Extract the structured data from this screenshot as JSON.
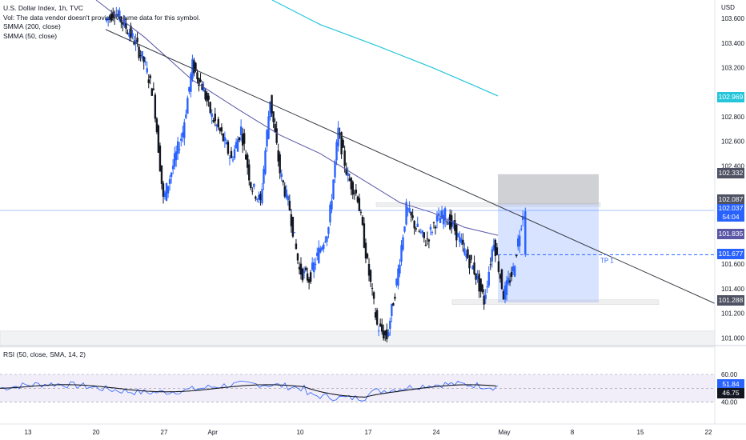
{
  "legend": {
    "title": "U.S. Dollar Index, 1h, TVC",
    "vol": "Vol: The data vendor doesn't provide volume data for this symbol.",
    "smma200": "SMMA (200, close)",
    "smma50": "SMMA (50, close)"
  },
  "rsi_legend": "RSI (50, close, SMA, 14, 2)",
  "price_axis": {
    "currency": "USD",
    "ticks": [
      "103.600",
      "103.400",
      "103.200",
      "102.800",
      "102.600",
      "102.400",
      "101.600",
      "101.400",
      "101.200",
      "101.000"
    ]
  },
  "rsi_axis": {
    "ticks": [
      "60.00",
      "40.00"
    ]
  },
  "time_axis": {
    "ticks": [
      "13",
      "20",
      "27",
      "Apr",
      "10",
      "17",
      "24",
      "May",
      "8",
      "15",
      "22"
    ]
  },
  "badges": {
    "smma200": "102.969",
    "stop": "102.332",
    "upper": "102.087",
    "last_price": "102.037",
    "countdown": "54:04",
    "smma50": "101.835",
    "tp": "101.677",
    "target": "101.288",
    "rsi": "51.84",
    "rsi_ma": "46.75"
  },
  "annotations": {
    "tp_label": "TP 1"
  },
  "colors": {
    "up": "#2962ff",
    "down": "#131722",
    "smma200": "#26c6da",
    "smma50": "#5b57a6",
    "trendline": "#363a45",
    "stop_zone": "rgba(120,123,134,0.35)",
    "target_zone": "rgba(41,98,255,0.18)",
    "rsi_line": "#2962ff",
    "rsi_ma": "#131722",
    "rsi_band": "rgba(126,87,194,0.10)"
  },
  "chart_data": {
    "type": "candlestick",
    "symbol": "U.S. Dollar Index",
    "timeframe": "1h",
    "y_range": [
      100.95,
      103.75
    ],
    "price_levels": {
      "stop_top": 102.332,
      "upper_box": 102.087,
      "last_price": 102.037,
      "take_profit": 101.677,
      "target_bottom": 101.288,
      "smma200_last": 102.969,
      "smma50_last": 101.835
    },
    "trendline": {
      "from": [
        "Mar 20",
        103.5
      ],
      "to": [
        "May 22",
        101.28
      ]
    },
    "candles": [
      {
        "date": "Mar 17",
        "close": 103.58
      },
      {
        "date": "Mar 18",
        "close": 103.66
      },
      {
        "date": "Mar 19",
        "close": 103.55
      },
      {
        "date": "Mar 20",
        "close": 103.42
      },
      {
        "date": "Mar 21",
        "close": 103.25
      },
      {
        "date": "Mar 22",
        "close": 102.98
      },
      {
        "date": "Mar 23",
        "close": 102.12
      },
      {
        "date": "Mar 24",
        "close": 102.4
      },
      {
        "date": "Mar 25",
        "close": 102.68
      },
      {
        "date": "Mar 26",
        "close": 103.22
      },
      {
        "date": "Mar 27",
        "close": 103.05
      },
      {
        "date": "Mar 28",
        "close": 102.8
      },
      {
        "date": "Mar 29",
        "close": 102.65
      },
      {
        "date": "Mar 30",
        "close": 102.45
      },
      {
        "date": "Mar 31",
        "close": 102.7
      },
      {
        "date": "Apr 1",
        "close": 102.25
      },
      {
        "date": "Apr 2",
        "close": 102.1
      },
      {
        "date": "Apr 3",
        "close": 102.95
      },
      {
        "date": "Apr 4",
        "close": 102.35
      },
      {
        "date": "Apr 5",
        "close": 102.05
      },
      {
        "date": "Apr 6",
        "close": 101.55
      },
      {
        "date": "Apr 7",
        "close": 101.48
      },
      {
        "date": "Apr 8",
        "close": 101.7
      },
      {
        "date": "Apr 9",
        "close": 101.9
      },
      {
        "date": "Apr 10",
        "close": 102.68
      },
      {
        "date": "Apr 11",
        "close": 102.3
      },
      {
        "date": "Apr 12",
        "close": 102.15
      },
      {
        "date": "Apr 13",
        "close": 101.6
      },
      {
        "date": "Apr 14",
        "close": 101.1
      },
      {
        "date": "Apr 15",
        "close": 101.0
      },
      {
        "date": "Apr 16",
        "close": 101.45
      },
      {
        "date": "Apr 17",
        "close": 102.05
      },
      {
        "date": "Apr 18",
        "close": 101.9
      },
      {
        "date": "Apr 19",
        "close": 101.78
      },
      {
        "date": "Apr 20",
        "close": 101.95
      },
      {
        "date": "Apr 21",
        "close": 102.0
      },
      {
        "date": "Apr 22",
        "close": 101.88
      },
      {
        "date": "Apr 23",
        "close": 101.7
      },
      {
        "date": "Apr 24",
        "close": 101.55
      },
      {
        "date": "Apr 25",
        "close": 101.3
      },
      {
        "date": "Apr 26",
        "close": 101.8
      },
      {
        "date": "Apr 27",
        "close": 101.35
      },
      {
        "date": "Apr 28",
        "close": 101.55
      },
      {
        "date": "Apr 29",
        "close": 102.03
      }
    ],
    "rsi": {
      "range": [
        30,
        75
      ],
      "last": 51.84,
      "ma_last": 46.75
    }
  }
}
